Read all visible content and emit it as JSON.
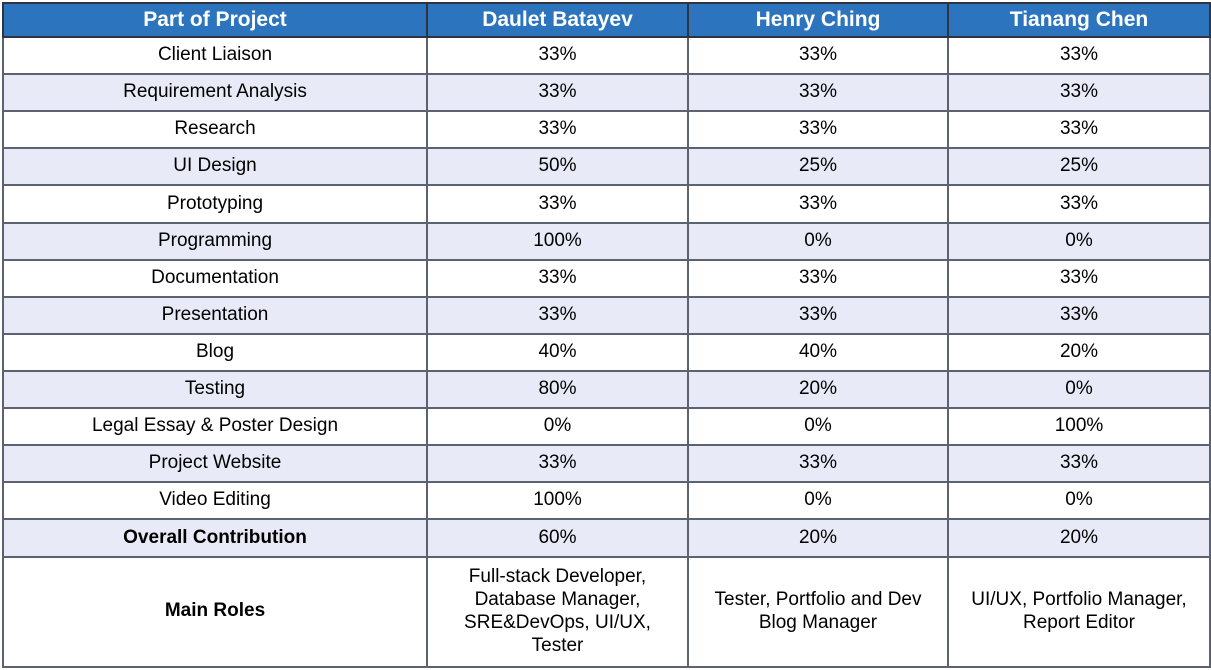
{
  "colors": {
    "header_bg": "#2d74be",
    "header_text": "#ffffff",
    "stripe_bg": "#e8ebf7",
    "row_bg": "#ffffff",
    "grid_line": "#5c6270",
    "outer_border": "#262a33",
    "body_text": "#000000"
  },
  "table": {
    "columns": [
      "Part of Project",
      "Daulet Batayev",
      "Henry Ching",
      "Tianang Chen"
    ],
    "rows": [
      {
        "part": "Client Liaison",
        "values": [
          "33%",
          "33%",
          "33%"
        ]
      },
      {
        "part": "Requirement Analysis",
        "values": [
          "33%",
          "33%",
          "33%"
        ]
      },
      {
        "part": "Research",
        "values": [
          "33%",
          "33%",
          "33%"
        ]
      },
      {
        "part": "UI Design",
        "values": [
          "50%",
          "25%",
          "25%"
        ]
      },
      {
        "part": "Prototyping",
        "values": [
          "33%",
          "33%",
          "33%"
        ]
      },
      {
        "part": "Programming",
        "values": [
          "100%",
          "0%",
          "0%"
        ]
      },
      {
        "part": "Documentation",
        "values": [
          "33%",
          "33%",
          "33%"
        ]
      },
      {
        "part": "Presentation",
        "values": [
          "33%",
          "33%",
          "33%"
        ]
      },
      {
        "part": "Blog",
        "values": [
          "40%",
          "40%",
          "20%"
        ]
      },
      {
        "part": "Testing",
        "values": [
          "80%",
          "20%",
          "0%"
        ]
      },
      {
        "part": "Legal Essay & Poster Design",
        "values": [
          "0%",
          "0%",
          "100%"
        ]
      },
      {
        "part": "Project Website",
        "values": [
          "33%",
          "33%",
          "33%"
        ]
      },
      {
        "part": "Video Editing",
        "values": [
          "100%",
          "0%",
          "0%"
        ]
      },
      {
        "part": "Overall Contribution",
        "values": [
          "60%",
          "20%",
          "20%"
        ]
      },
      {
        "part": "Main Roles",
        "values": [
          "Full-stack Developer,\nDatabase Manager,\nSRE&DevOps, UI/UX,\nTester",
          "Tester, Portfolio and Dev\nBlog Manager",
          "UI/UX, Portfolio Manager,\nReport Editor"
        ]
      }
    ]
  }
}
